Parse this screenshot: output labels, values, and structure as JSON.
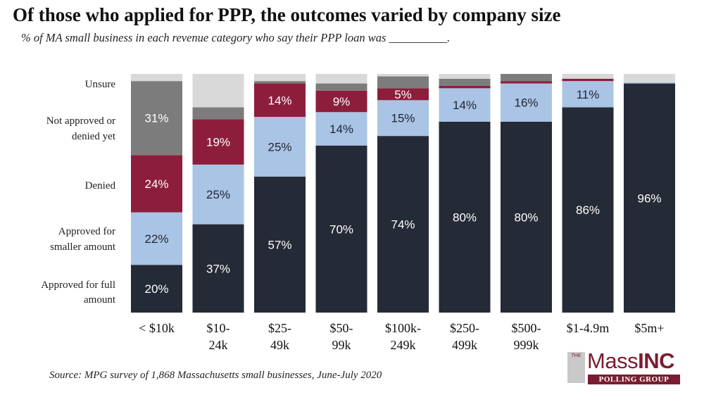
{
  "chart_data": {
    "type": "bar",
    "stacked": true,
    "title": "Of those who applied for PPP, the outcomes varied by company size",
    "subtitle": "% of MA small business in each revenue category who say their PPP loan was __________.",
    "source": "Source: MPG survey of 1,868 Massachusetts small businesses, June-July 2020",
    "categories": [
      [
        "< $10k"
      ],
      [
        "$10-",
        "24k"
      ],
      [
        "$25-",
        "49k"
      ],
      [
        "$50-",
        "99k"
      ],
      [
        "$100k-",
        "249k"
      ],
      [
        "$250-",
        "499k"
      ],
      [
        "$500-",
        "999k"
      ],
      [
        "$1-4.9m"
      ],
      [
        "$5m+"
      ]
    ],
    "series": [
      {
        "name": "Approved for full amount",
        "label_lines": [
          "Approved for full",
          "amount"
        ],
        "color": "#252a37",
        "values": [
          20,
          37,
          57,
          70,
          74,
          80,
          80,
          86,
          96
        ],
        "labels": [
          "20%",
          "37%",
          "57%",
          "70%",
          "74%",
          "80%",
          "80%",
          "86%",
          "96%"
        ]
      },
      {
        "name": "Approved for smaller amount",
        "label_lines": [
          "Approved for",
          "smaller amount"
        ],
        "color": "#a9c4e4",
        "values": [
          22,
          25,
          25,
          14,
          15,
          14,
          16,
          11,
          0.5
        ],
        "labels": [
          "22%",
          "25%",
          "25%",
          "14%",
          "15%",
          "14%",
          "16%",
          "11%",
          ""
        ]
      },
      {
        "name": "Denied",
        "label_lines": [
          "Denied"
        ],
        "color": "#8c1e3c",
        "values": [
          24,
          19,
          14,
          9,
          5,
          1,
          1,
          1,
          0
        ],
        "labels": [
          "24%",
          "19%",
          "14%",
          "9%",
          "5%",
          "",
          "",
          "",
          ""
        ]
      },
      {
        "name": "Not approved or denied yet",
        "label_lines": [
          "Not approved or",
          "denied yet"
        ],
        "color": "#7c7c7c",
        "values": [
          31,
          5,
          1,
          3,
          5,
          3,
          3,
          0,
          0
        ],
        "labels": [
          "31%",
          "",
          "",
          "",
          "",
          "",
          "",
          "",
          ""
        ]
      },
      {
        "name": "Unsure",
        "label_lines": [
          "Unsure"
        ],
        "color": "#d9d9d9",
        "values": [
          3,
          14,
          3,
          4,
          1,
          2,
          0,
          2,
          3.5
        ],
        "labels": [
          "",
          "",
          "",
          "",
          "",
          "",
          "",
          "",
          ""
        ]
      }
    ],
    "ylim": [
      0,
      100
    ],
    "xlabel": "",
    "ylabel": ""
  },
  "logo": {
    "the": "THE",
    "main_regular": "Mass",
    "main_bold": "INC",
    "sub": "POLLING GROUP"
  }
}
